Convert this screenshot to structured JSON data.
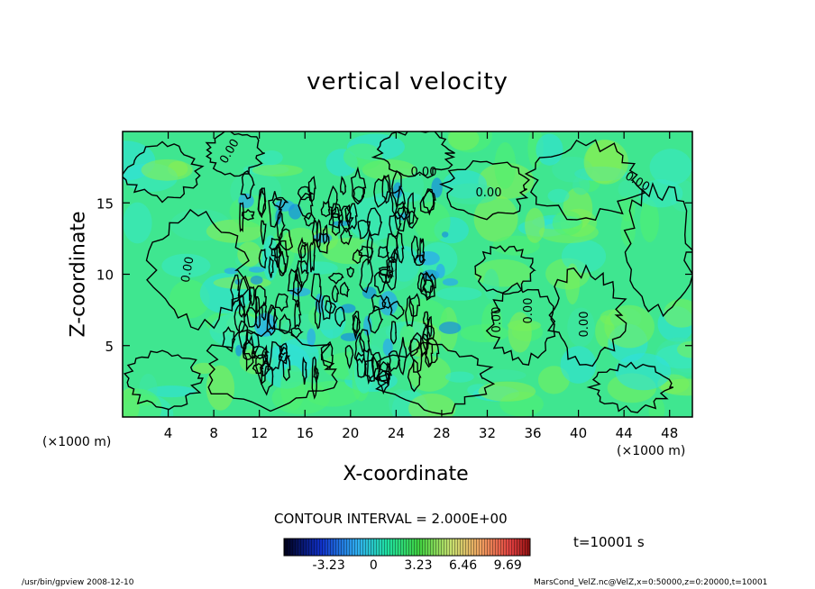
{
  "chart_data": {
    "type": "heatmap",
    "title": "vertical velocity",
    "xlabel": "X-coordinate",
    "ylabel": "Z-coordinate",
    "x_unit": "(×1000 m)",
    "x_ticks": [
      4,
      8,
      12,
      16,
      20,
      24,
      28,
      32,
      36,
      40,
      44,
      48
    ],
    "y_ticks": [
      5,
      10,
      15
    ],
    "xlim": [
      0,
      50
    ],
    "ylim": [
      0,
      20
    ],
    "contour_interval_label": "CONTOUR INTERVAL = 2.000E+00",
    "contour_labels": [
      "0.00",
      "0.00",
      "0.00",
      "0.00",
      "0.00",
      "0.00",
      "0.00",
      "0.00"
    ],
    "colorbar": {
      "ticks": [
        "-3.23",
        "0",
        "3.23",
        "6.46",
        "9.69"
      ],
      "tick_values": [
        -3.23,
        0,
        3.23,
        6.46,
        9.69
      ],
      "range": [
        -6.46,
        11.3
      ]
    },
    "time_label": "t=10001  s"
  },
  "footer": {
    "left": "/usr/bin/gpview   2008-12-10",
    "right": "MarsCond_VelZ.nc@VelZ,x=0:50000,z=0:20000,t=10001"
  }
}
